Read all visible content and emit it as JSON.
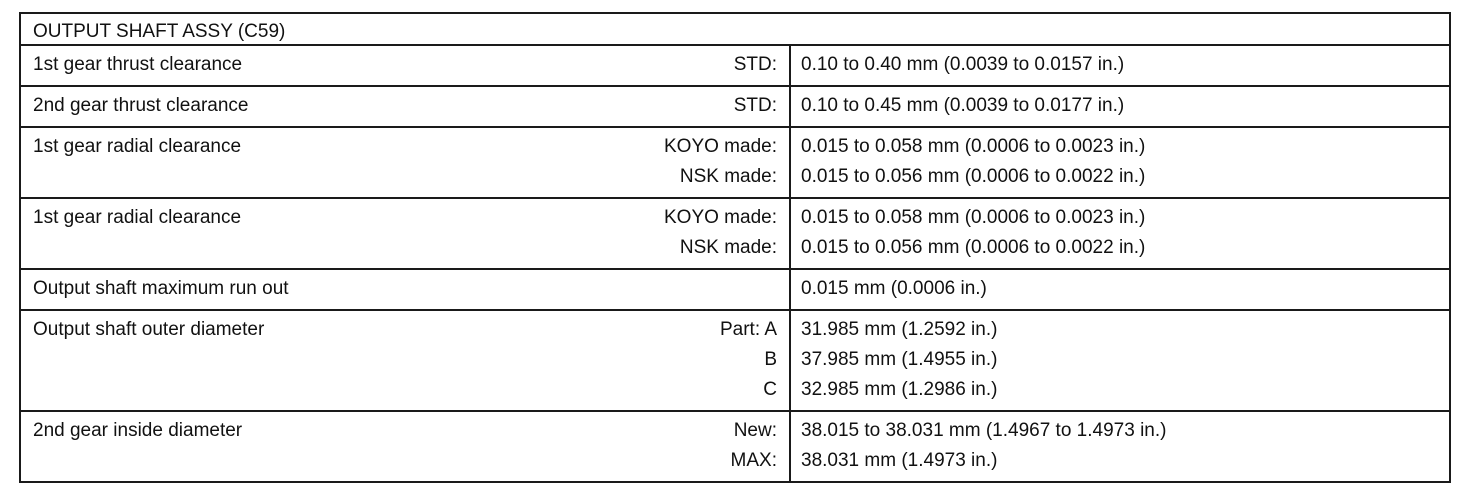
{
  "title": "OUTPUT SHAFT ASSY (C59)",
  "rows": [
    {
      "item": "1st gear thrust clearance",
      "lines": [
        {
          "qualifier": "STD:",
          "value": "0.10 to 0.40 mm (0.0039 to 0.0157 in.)"
        }
      ]
    },
    {
      "item": "2nd gear thrust clearance",
      "lines": [
        {
          "qualifier": "STD:",
          "value": "0.10 to 0.45 mm (0.0039 to 0.0177 in.)"
        }
      ]
    },
    {
      "item": "1st gear radial clearance",
      "lines": [
        {
          "qualifier": "KOYO made:",
          "value": "0.015 to 0.058 mm (0.0006 to 0.0023 in.)"
        },
        {
          "qualifier": "NSK made:",
          "value": "0.015 to 0.056 mm (0.0006 to 0.0022 in.)"
        }
      ]
    },
    {
      "item": "1st gear radial clearance",
      "lines": [
        {
          "qualifier": "KOYO made:",
          "value": "0.015 to 0.058 mm (0.0006 to 0.0023 in.)"
        },
        {
          "qualifier": "NSK made:",
          "value": "0.015 to 0.056 mm (0.0006 to 0.0022 in.)"
        }
      ]
    },
    {
      "item": "Output shaft maximum run out",
      "lines": [
        {
          "qualifier": "",
          "value": "0.015 mm (0.0006 in.)"
        }
      ]
    },
    {
      "item": "Output shaft outer diameter",
      "lines": [
        {
          "qualifier": "Part: A",
          "value": "31.985 mm (1.2592 in.)"
        },
        {
          "qualifier": "B",
          "value": "37.985 mm (1.4955 in.)"
        },
        {
          "qualifier": "C",
          "value": "32.985 mm (1.2986 in.)"
        }
      ]
    },
    {
      "item": "2nd gear inside diameter",
      "lines": [
        {
          "qualifier": "New:",
          "value": "38.015 to 38.031 mm (1.4967 to 1.4973 in.)"
        },
        {
          "qualifier": "MAX:",
          "value": "38.031 mm (1.4973 in.)"
        }
      ]
    }
  ]
}
